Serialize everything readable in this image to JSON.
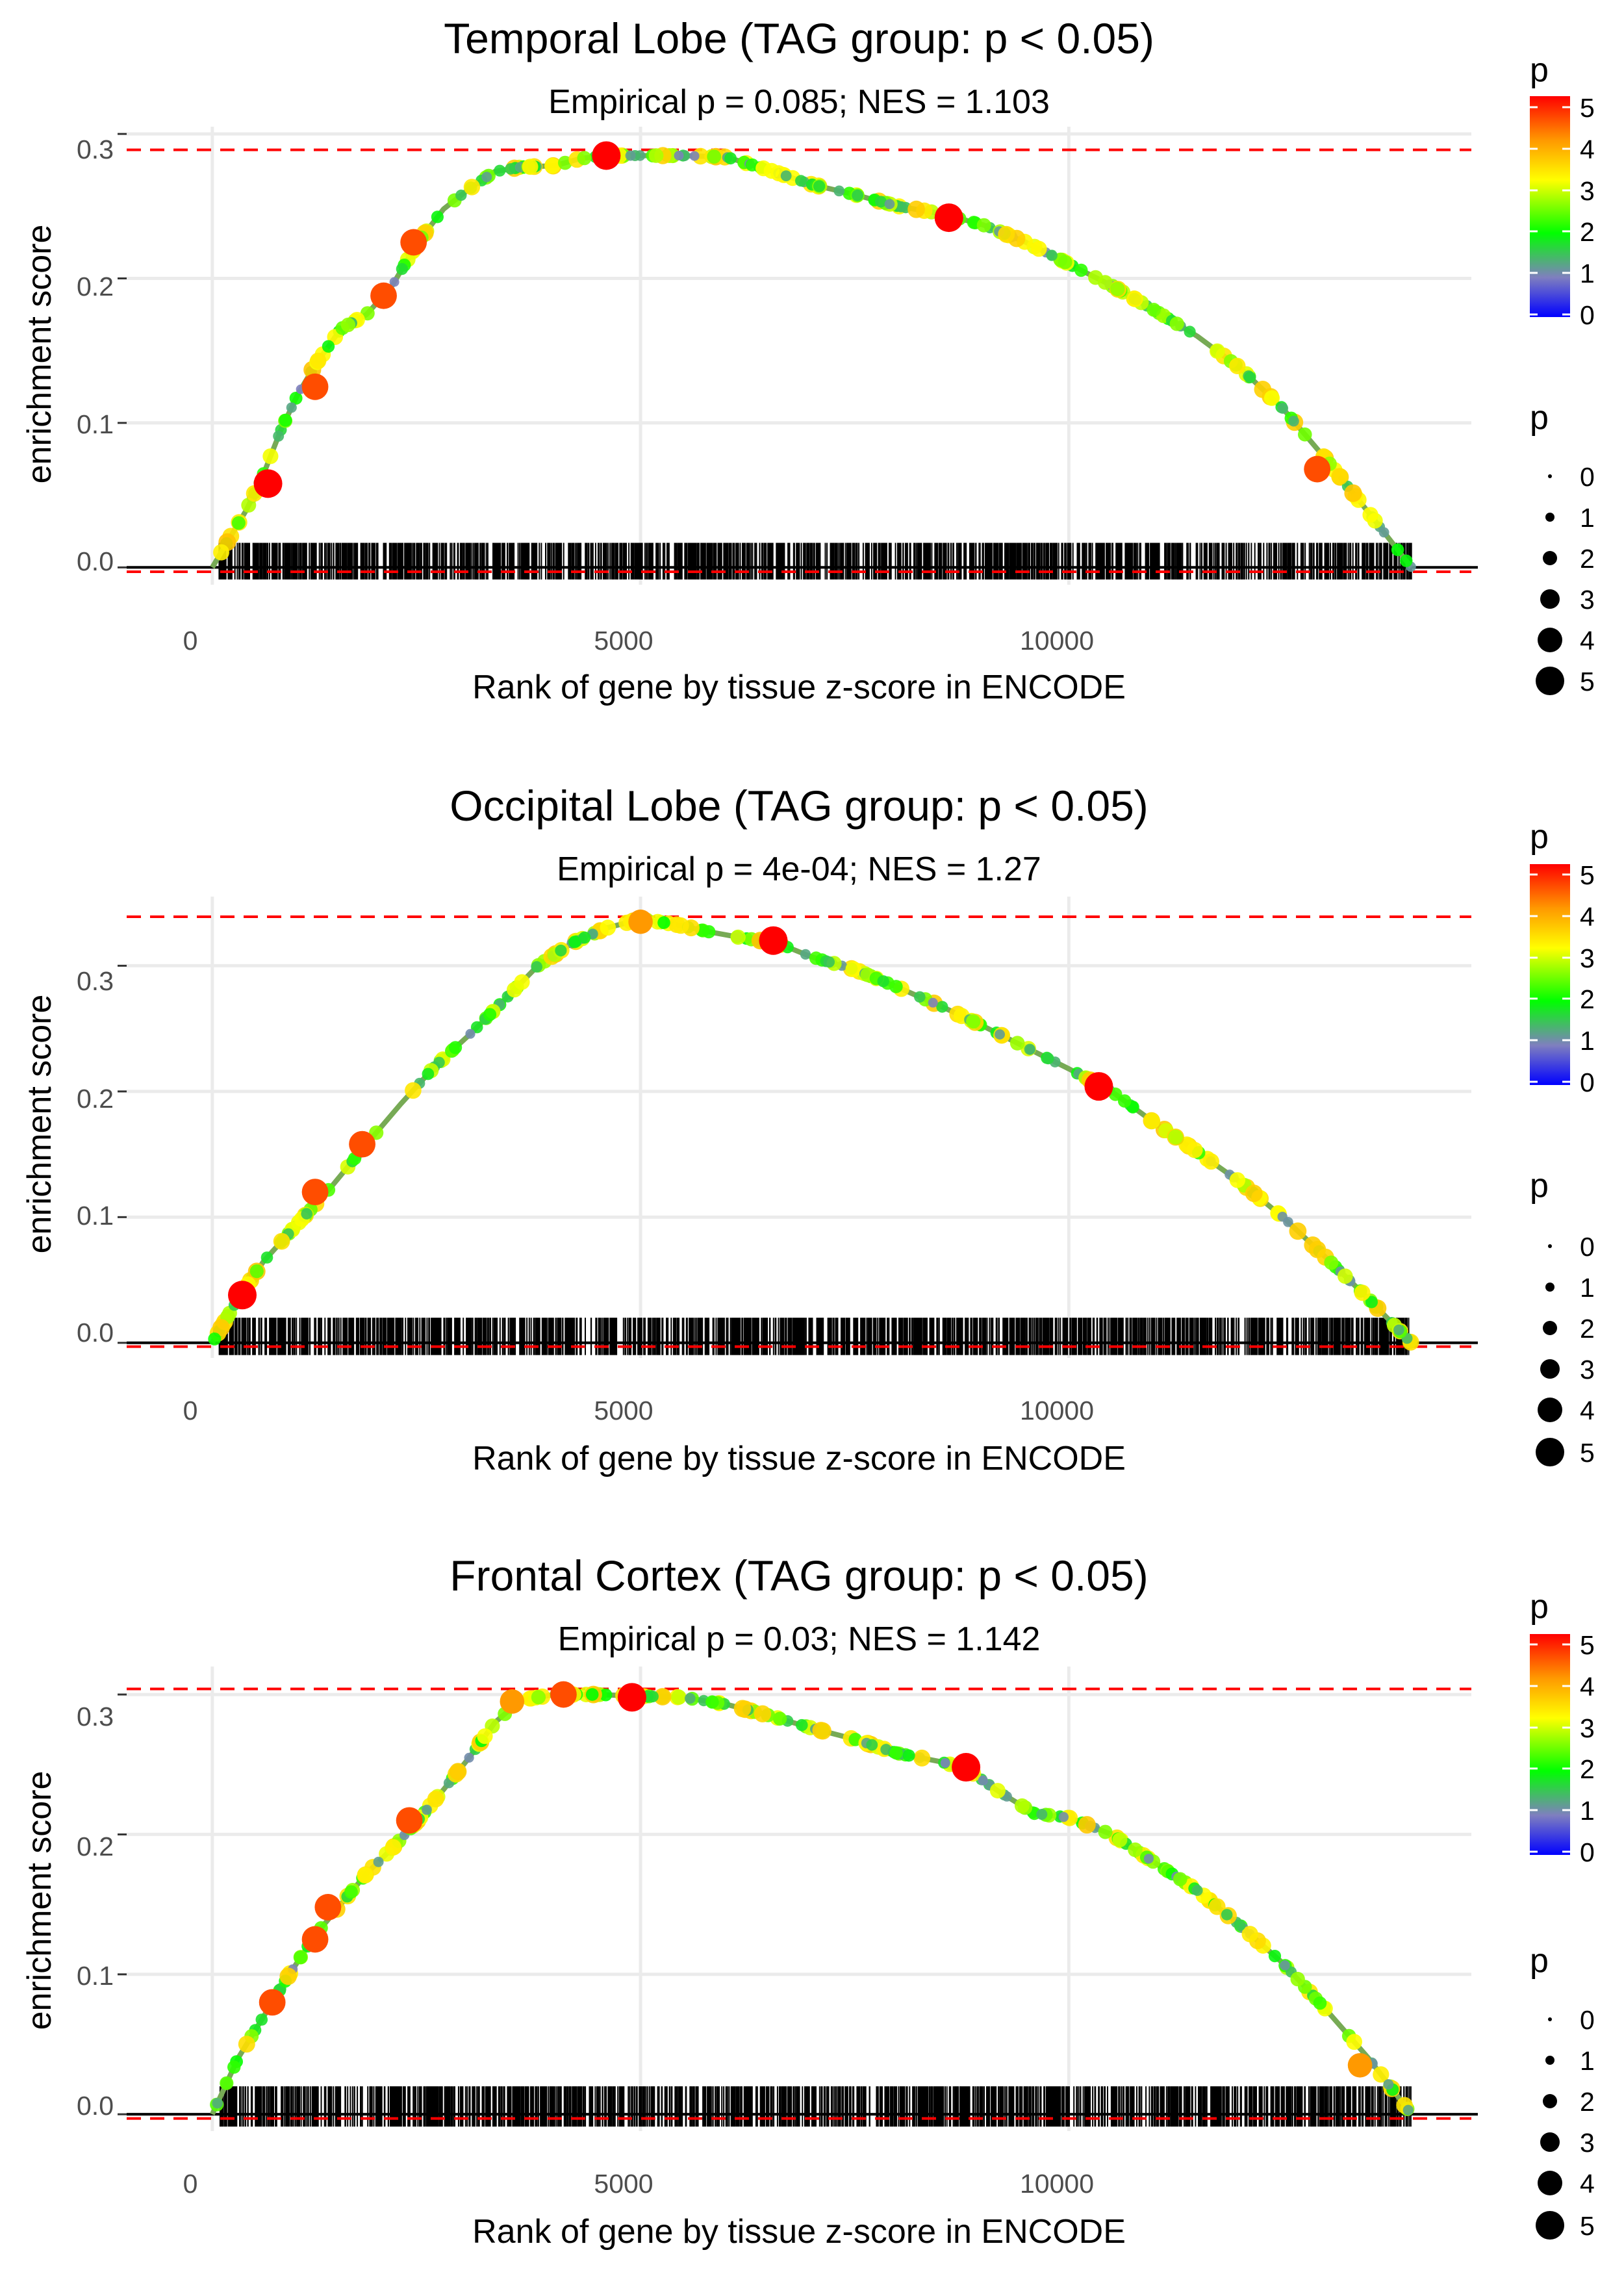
{
  "chart_data": [
    {
      "type": "line",
      "title": "Temporal Lobe (TAG group: p < 0.05)",
      "subtitle": "Empirical p = 0.085; NES = 1.103",
      "xlabel": "Rank of gene by tissue z-score in ENCODE",
      "ylabel": "enrichment score",
      "xlim": [
        -1000,
        14700
      ],
      "ylim": [
        -0.012,
        0.305
      ],
      "xticks": [
        0,
        5000,
        10000
      ],
      "xtick_labels": [
        "0",
        "5000",
        "10000"
      ],
      "yticks": [
        0.0,
        0.1,
        0.2,
        0.3
      ],
      "ytick_labels": [
        "0.0",
        "0.1",
        "0.2",
        "0.3"
      ],
      "max_es_line": 0.289,
      "min_es_line": -0.003,
      "rug_range": [
        0,
        14000
      ],
      "rug_ymax": 0.017,
      "curve": {
        "x": [
          0,
          200,
          400,
          600,
          800,
          1000,
          1200,
          1500,
          1800,
          2100,
          2400,
          2700,
          3000,
          3300,
          3600,
          4000,
          4300,
          4600,
          5000,
          5500,
          6000,
          6500,
          7000,
          7500,
          8000,
          8500,
          9000,
          9500,
          10000,
          10500,
          11000,
          11500,
          12000,
          12500,
          13000,
          13500,
          14000
        ],
        "y": [
          0.0,
          0.02,
          0.04,
          0.065,
          0.095,
          0.12,
          0.14,
          0.165,
          0.175,
          0.195,
          0.225,
          0.248,
          0.262,
          0.274,
          0.277,
          0.278,
          0.283,
          0.285,
          0.285,
          0.285,
          0.284,
          0.275,
          0.265,
          0.258,
          0.25,
          0.245,
          0.237,
          0.225,
          0.21,
          0.195,
          0.178,
          0.16,
          0.138,
          0.11,
          0.075,
          0.038,
          0.0
        ]
      },
      "highlight_points": {
        "x": [
          650,
          1200,
          2000,
          2350,
          4600,
          8600,
          12900
        ],
        "y": [
          0.058,
          0.125,
          0.188,
          0.225,
          0.285,
          0.242,
          0.068
        ],
        "p": [
          5,
          4.5,
          4.5,
          4.5,
          5,
          5,
          4.5
        ]
      }
    },
    {
      "type": "line",
      "title": "Occipital Lobe (TAG group: p < 0.05)",
      "subtitle": "Empirical p = 4e-04; NES = 1.27",
      "xlabel": "Rank of gene by tissue z-score in ENCODE",
      "ylabel": "enrichment score",
      "xlim": [
        -1000,
        14700
      ],
      "ylim": [
        -0.012,
        0.355
      ],
      "xticks": [
        0,
        5000,
        10000
      ],
      "xtick_labels": [
        "0",
        "5000",
        "10000"
      ],
      "yticks": [
        0.0,
        0.1,
        0.2,
        0.3
      ],
      "ytick_labels": [
        "0.0",
        "0.1",
        "0.2",
        "0.3"
      ],
      "max_es_line": 0.339,
      "min_es_line": -0.003,
      "rug_range": [
        0,
        14000
      ],
      "rug_ymax": 0.02,
      "curve": {
        "x": [
          0,
          300,
          600,
          1000,
          1400,
          1800,
          2200,
          2600,
          3000,
          3400,
          3800,
          4200,
          4600,
          5000,
          5400,
          5800,
          6200,
          6600,
          7000,
          7500,
          8000,
          8500,
          9000,
          9500,
          10000,
          10500,
          11000,
          11500,
          12000,
          12500,
          13000,
          13500,
          14000
        ],
        "y": [
          0.0,
          0.035,
          0.065,
          0.095,
          0.125,
          0.158,
          0.19,
          0.22,
          0.245,
          0.272,
          0.3,
          0.318,
          0.33,
          0.337,
          0.333,
          0.327,
          0.322,
          0.318,
          0.307,
          0.297,
          0.283,
          0.268,
          0.252,
          0.235,
          0.218,
          0.2,
          0.175,
          0.152,
          0.128,
          0.1,
          0.068,
          0.035,
          0.0
        ]
      },
      "highlight_points": {
        "x": [
          350,
          1200,
          1750,
          5000,
          6550,
          10350
        ],
        "y": [
          0.038,
          0.12,
          0.158,
          0.335,
          0.32,
          0.204
        ],
        "p": [
          5,
          4.5,
          4.5,
          4,
          5,
          5
        ]
      }
    },
    {
      "type": "line",
      "title": "Frontal Cortex (TAG group: p < 0.05)",
      "subtitle": "Empirical p = 0.03; NES = 1.142",
      "xlabel": "Rank of gene by tissue z-score in ENCODE",
      "ylabel": "enrichment score",
      "xlim": [
        -1000,
        14700
      ],
      "ylim": [
        -0.012,
        0.32
      ],
      "xticks": [
        0,
        5000,
        10000
      ],
      "xtick_labels": [
        "0",
        "5000",
        "10000"
      ],
      "yticks": [
        0.0,
        0.1,
        0.2,
        0.3
      ],
      "ytick_labels": [
        "0.0",
        "0.1",
        "0.2",
        "0.3"
      ],
      "max_es_line": 0.304,
      "min_es_line": -0.003,
      "rug_range": [
        0,
        14000
      ],
      "rug_ymax": 0.02,
      "curve": {
        "x": [
          0,
          300,
          600,
          900,
          1200,
          1500,
          1800,
          2100,
          2400,
          2700,
          3000,
          3300,
          3600,
          4000,
          4500,
          4900,
          5500,
          6000,
          6500,
          7000,
          7500,
          8000,
          8500,
          8800,
          9200,
          9600,
          10000,
          10500,
          11000,
          11500,
          12000,
          12500,
          13000,
          13500,
          14000
        ],
        "y": [
          0.0,
          0.04,
          0.07,
          0.1,
          0.128,
          0.15,
          0.172,
          0.19,
          0.21,
          0.232,
          0.255,
          0.28,
          0.296,
          0.3,
          0.3,
          0.299,
          0.298,
          0.293,
          0.285,
          0.276,
          0.268,
          0.258,
          0.252,
          0.247,
          0.23,
          0.215,
          0.212,
          0.2,
          0.18,
          0.16,
          0.135,
          0.108,
          0.075,
          0.04,
          0.0
        ]
      },
      "highlight_points": {
        "x": [
          700,
          1200,
          1350,
          2300,
          3500,
          4100,
          4900,
          8800,
          13400
        ],
        "y": [
          0.08,
          0.125,
          0.148,
          0.21,
          0.295,
          0.3,
          0.298,
          0.248,
          0.035
        ],
        "p": [
          4.5,
          4.5,
          4.5,
          4.5,
          4,
          4.5,
          5,
          5,
          4
        ]
      }
    }
  ],
  "legends": [
    {
      "colorbar_title": "p",
      "colorbar_labels": [
        "5",
        "4",
        "3",
        "2",
        "1",
        "0"
      ],
      "size_title": "p",
      "size_labels": [
        "0",
        "1",
        "2",
        "3",
        "4",
        "5"
      ]
    },
    {
      "colorbar_title": "p",
      "colorbar_labels": [
        "5",
        "4",
        "3",
        "2",
        "1",
        "0"
      ],
      "size_title": "p",
      "size_labels": [
        "0",
        "1",
        "2",
        "3",
        "4",
        "5"
      ]
    },
    {
      "colorbar_title": "p",
      "colorbar_labels": [
        "5",
        "4",
        "3",
        "2",
        "1",
        "0"
      ],
      "size_title": "p",
      "size_labels": [
        "0",
        "1",
        "2",
        "3",
        "4",
        "5"
      ]
    }
  ],
  "colors": {
    "dashed_line": "#ff0000",
    "zero_line": "#000000",
    "grid": "#ebebeb",
    "rug": "#000000",
    "colorbar_stops": [
      "#0000ff",
      "#7f7fbf",
      "#00ff00",
      "#ffff00",
      "#ff0000"
    ]
  }
}
